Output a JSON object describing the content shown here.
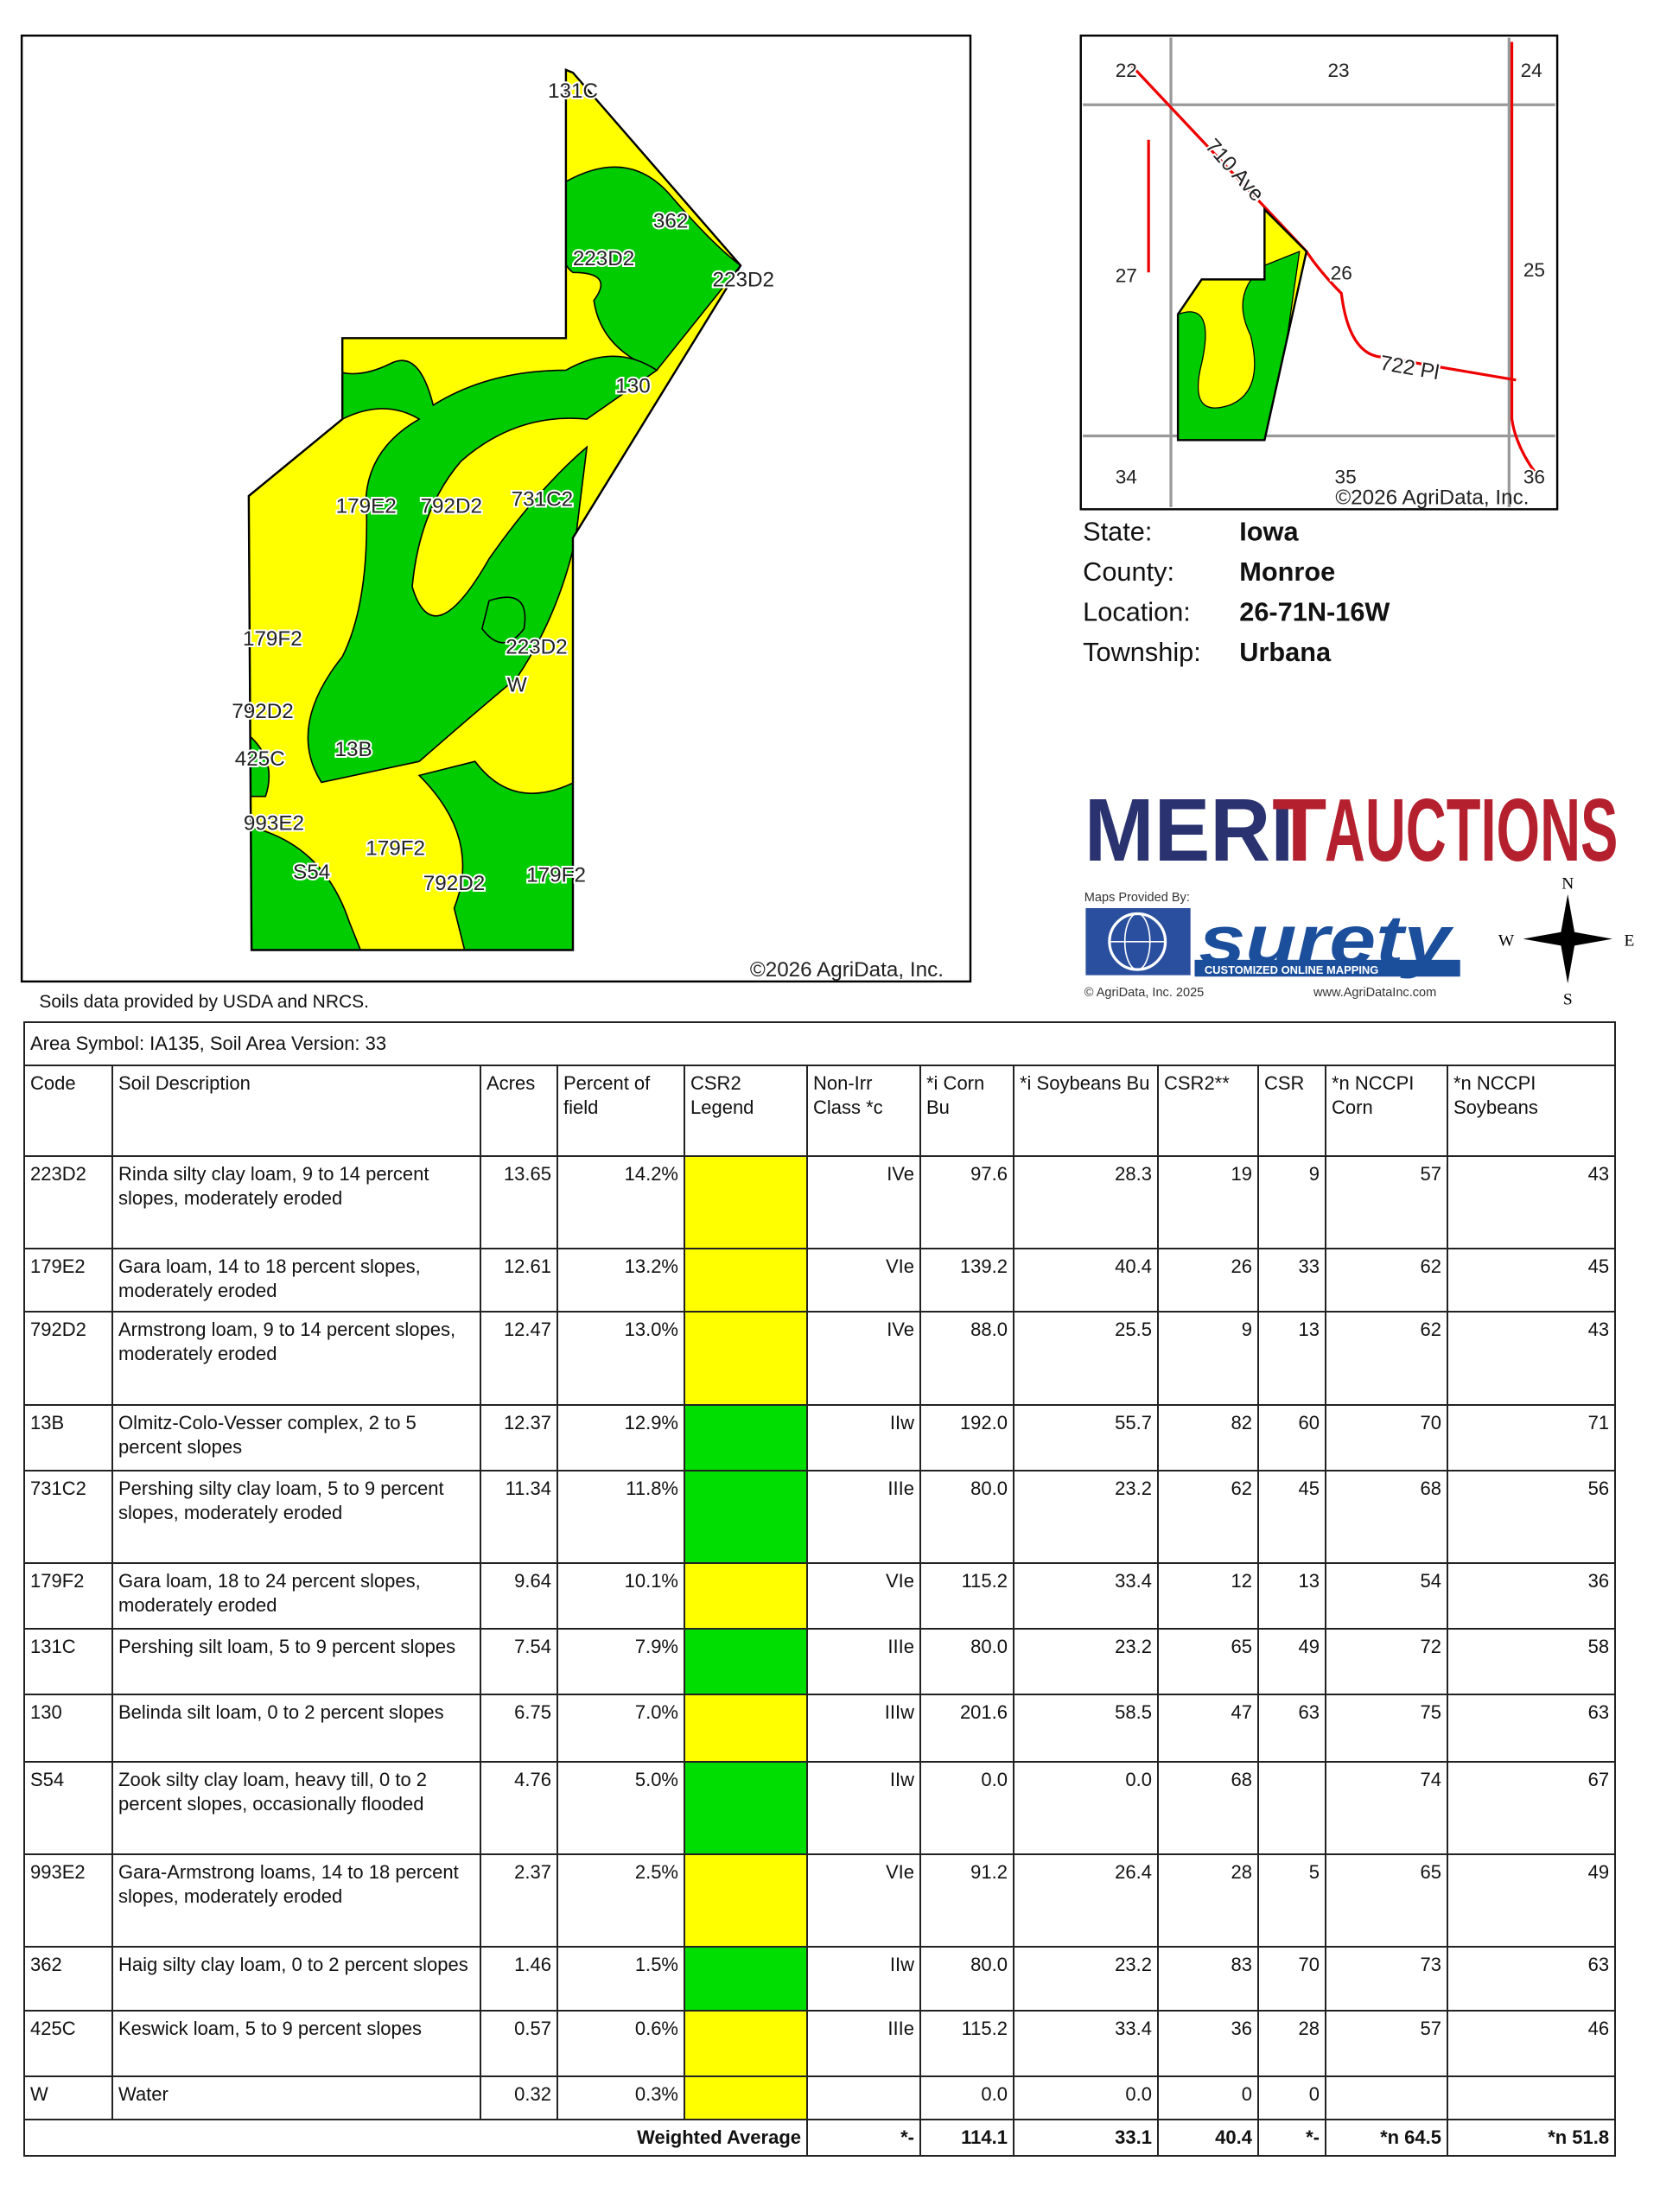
{
  "map": {
    "labels": [
      "131C",
      "362",
      "223D2",
      "223D2",
      "130",
      "179E2",
      "792D2",
      "731C2",
      "179F2",
      "223D2",
      "W",
      "792D2",
      "425C",
      "13B",
      "993E2",
      "179F2",
      "S54",
      "792D2",
      "179F2"
    ],
    "copyright": "©2026 AgriData, Inc."
  },
  "inset": {
    "sections": [
      "22",
      "23",
      "24",
      "27",
      "26",
      "25",
      "34",
      "35",
      "36"
    ],
    "roads": [
      "710 Ave",
      "722 Pl"
    ],
    "copyright": "©2026 AgriData, Inc."
  },
  "location": [
    {
      "label": "State:",
      "value": "Iowa"
    },
    {
      "label": "County:",
      "value": "Monroe"
    },
    {
      "label": "Location:",
      "value": "26-71N-16W"
    },
    {
      "label": "Township:",
      "value": "Urbana"
    }
  ],
  "logo": {
    "name_left": "MERI",
    "name_mark": "T",
    "name_right": "AUCTIONS",
    "provided_by": "Maps Provided By:",
    "brand": "surety",
    "tagline": "CUSTOMIZED ONLINE MAPPING",
    "copyright": "© AgriData, Inc. 2025",
    "website": "www.AgriDataInc.com"
  },
  "compass": {
    "n": "N",
    "e": "E",
    "s": "S",
    "w": "W"
  },
  "source_note": "Soils data provided by USDA and NRCS.",
  "table": {
    "title": "Area Symbol: IA135, Soil Area Version: 33",
    "header": [
      "Code",
      "Soil Description",
      "Acres",
      "Percent of field",
      "CSR2 Legend",
      "Non-Irr Class *c",
      "*i Corn Bu",
      "*i Soybeans Bu",
      "CSR2**",
      "CSR",
      "*n NCCPI Corn",
      "*n NCCPI Soybeans"
    ],
    "rows": [
      {
        "legend": "#ffff00",
        "cells": [
          "223D2",
          "Rinda silty clay loam, 9 to 14 percent slopes, moderately eroded",
          "13.65",
          "14.2%",
          "IVe",
          "97.6",
          "28.3",
          "19",
          "9",
          "57",
          "43"
        ]
      },
      {
        "legend": "#ffff00",
        "cells": [
          "179E2",
          "Gara loam, 14 to 18 percent slopes, moderately eroded",
          "12.61",
          "13.2%",
          "VIe",
          "139.2",
          "40.4",
          "26",
          "33",
          "62",
          "45"
        ]
      },
      {
        "legend": "#ffff00",
        "cells": [
          "792D2",
          "Armstrong loam, 9 to 14 percent slopes, moderately eroded",
          "12.47",
          "13.0%",
          "IVe",
          "88.0",
          "25.5",
          "9",
          "13",
          "62",
          "43"
        ]
      },
      {
        "legend": "#00dd00",
        "cells": [
          "13B",
          "Olmitz-Colo-Vesser complex, 2 to 5 percent slopes",
          "12.37",
          "12.9%",
          "IIw",
          "192.0",
          "55.7",
          "82",
          "60",
          "70",
          "71"
        ]
      },
      {
        "legend": "#00dd00",
        "cells": [
          "731C2",
          "Pershing silty clay loam, 5 to 9 percent slopes, moderately eroded",
          "11.34",
          "11.8%",
          "IIIe",
          "80.0",
          "23.2",
          "62",
          "45",
          "68",
          "56"
        ]
      },
      {
        "legend": "#ffff00",
        "cells": [
          "179F2",
          "Gara loam, 18 to 24 percent slopes, moderately eroded",
          "9.64",
          "10.1%",
          "VIe",
          "115.2",
          "33.4",
          "12",
          "13",
          "54",
          "36"
        ]
      },
      {
        "legend": "#00dd00",
        "cells": [
          "131C",
          "Pershing silt loam, 5 to 9 percent slopes",
          "7.54",
          "7.9%",
          "IIIe",
          "80.0",
          "23.2",
          "65",
          "49",
          "72",
          "58"
        ]
      },
      {
        "legend": "#ffff00",
        "cells": [
          "130",
          "Belinda silt loam, 0 to 2 percent slopes",
          "6.75",
          "7.0%",
          "IIIw",
          "201.6",
          "58.5",
          "47",
          "63",
          "75",
          "63"
        ]
      },
      {
        "legend": "#00dd00",
        "cells": [
          "S54",
          "Zook silty clay loam, heavy till, 0 to 2 percent slopes, occasionally flooded",
          "4.76",
          "5.0%",
          "IIw",
          "0.0",
          "0.0",
          "68",
          null,
          "74",
          "67"
        ]
      },
      {
        "legend": "#ffff00",
        "cells": [
          "993E2",
          "Gara-Armstrong loams, 14 to 18 percent slopes, moderately eroded",
          "2.37",
          "2.5%",
          "VIe",
          "91.2",
          "26.4",
          "28",
          "5",
          "65",
          "49"
        ]
      },
      {
        "legend": "#00dd00",
        "cells": [
          "362",
          "Haig silty clay loam, 0 to 2 percent slopes",
          "1.46",
          "1.5%",
          "IIw",
          "80.0",
          "23.2",
          "83",
          "70",
          "73",
          "63"
        ]
      },
      {
        "legend": "#ffff00",
        "cells": [
          "425C",
          "Keswick loam, 5 to 9 percent slopes",
          "0.57",
          "0.6%",
          "IIIe",
          "115.2",
          "33.4",
          "36",
          "28",
          "57",
          "46"
        ]
      },
      {
        "legend": "#ffff00",
        "cells": [
          "W",
          "Water",
          "0.32",
          "0.3%",
          null,
          "0.0",
          "0.0",
          "0",
          "0",
          null,
          null
        ]
      }
    ],
    "weighted": {
      "label": "Weighted Average",
      "cells": [
        "*-",
        "114.1",
        "33.1",
        "40.4",
        "*-",
        "*n 64.5",
        "*n 51.8"
      ]
    }
  }
}
